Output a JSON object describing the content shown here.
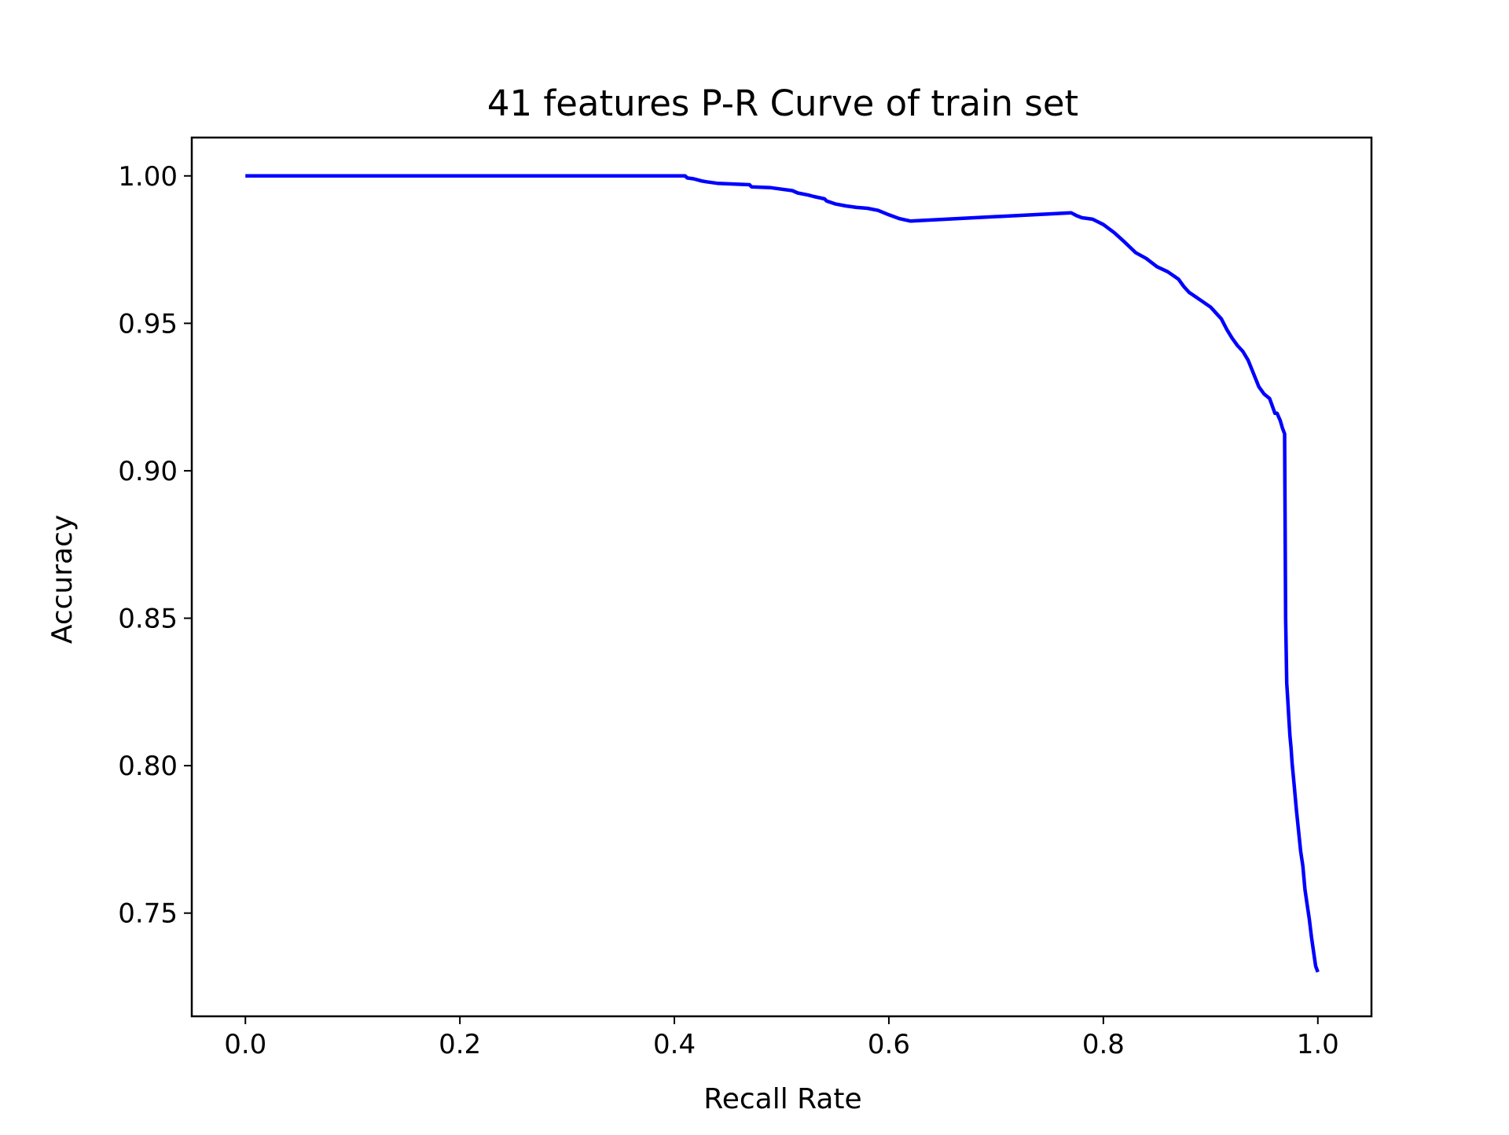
{
  "chart_data": {
    "type": "line",
    "title": "41 features P-R Curve of train set",
    "xlabel": "Recall Rate",
    "ylabel": "Accuracy",
    "xlim": [
      -0.05,
      1.05
    ],
    "ylim": [
      0.715,
      1.013
    ],
    "xticks": [
      0.0,
      0.2,
      0.4,
      0.6,
      0.8,
      1.0
    ],
    "xtick_labels": [
      "0.0",
      "0.2",
      "0.4",
      "0.6",
      "0.8",
      "1.0"
    ],
    "yticks": [
      0.75,
      0.8,
      0.85,
      0.9,
      0.95,
      1.0
    ],
    "ytick_labels": [
      "0.75",
      "0.80",
      "0.85",
      "0.90",
      "0.95",
      "1.00"
    ],
    "grid": false,
    "legend": false,
    "line_color": "#0000ff",
    "series": [
      {
        "x": [
          0.0,
          0.41,
          0.412,
          0.418,
          0.425,
          0.43,
          0.44,
          0.47,
          0.472,
          0.49,
          0.5,
          0.51,
          0.515,
          0.525,
          0.53,
          0.54,
          0.542,
          0.55,
          0.56,
          0.57,
          0.58,
          0.59,
          0.6,
          0.61,
          0.62,
          0.77,
          0.775,
          0.78,
          0.79,
          0.8,
          0.81,
          0.82,
          0.83,
          0.84,
          0.85,
          0.86,
          0.87,
          0.875,
          0.88,
          0.89,
          0.9,
          0.91,
          0.915,
          0.92,
          0.925,
          0.93,
          0.935,
          0.945,
          0.95,
          0.955,
          0.96,
          0.962,
          0.965,
          0.967,
          0.969,
          0.97,
          0.971,
          0.972,
          0.973,
          0.974,
          0.975,
          0.976,
          0.978,
          0.98,
          0.982,
          0.984,
          0.986,
          0.988,
          0.99,
          0.992,
          0.994,
          0.996,
          0.998,
          1.0
        ],
        "y": [
          1.0,
          1.0,
          0.9993,
          0.999,
          0.9983,
          0.998,
          0.9975,
          0.997,
          0.9963,
          0.996,
          0.9955,
          0.995,
          0.9942,
          0.9935,
          0.993,
          0.9922,
          0.9915,
          0.9905,
          0.9898,
          0.9893,
          0.989,
          0.9883,
          0.9868,
          0.9855,
          0.9847,
          0.9875,
          0.9865,
          0.9858,
          0.9853,
          0.9835,
          0.9808,
          0.9775,
          0.974,
          0.972,
          0.9692,
          0.9675,
          0.965,
          0.9625,
          0.9605,
          0.958,
          0.9555,
          0.9515,
          0.948,
          0.945,
          0.9425,
          0.9405,
          0.9375,
          0.9285,
          0.926,
          0.9245,
          0.9195,
          0.9195,
          0.917,
          0.9145,
          0.9125,
          0.85,
          0.828,
          0.822,
          0.816,
          0.81,
          0.806,
          0.801,
          0.793,
          0.785,
          0.778,
          0.771,
          0.766,
          0.758,
          0.753,
          0.748,
          0.742,
          0.737,
          0.732,
          0.73
        ]
      }
    ]
  }
}
